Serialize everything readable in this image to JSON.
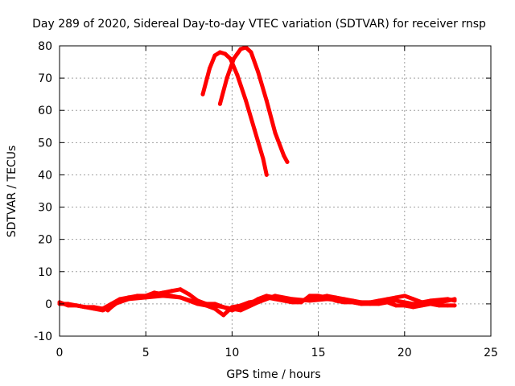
{
  "chart_data": {
    "type": "line",
    "title": "Day 289 of 2020, Sidereal Day-to-day VTEC variation (SDTVAR) for receiver rnsp",
    "xlabel": "GPS time / hours",
    "ylabel": "SDTVAR / TECUs",
    "xlim": [
      0,
      25
    ],
    "ylim": [
      -10,
      80
    ],
    "xticks": [
      "0",
      "5",
      "10",
      "15",
      "20",
      "25"
    ],
    "yticks": [
      "-10",
      "0",
      "10",
      "20",
      "30",
      "40",
      "50",
      "60",
      "70",
      "80"
    ],
    "grid": true,
    "series_color": "#ff0000",
    "series": [
      {
        "points": [
          [
            8.3,
            65
          ],
          [
            8.7,
            73
          ],
          [
            9.0,
            77
          ],
          [
            9.3,
            78
          ],
          [
            9.6,
            77.5
          ],
          [
            9.9,
            76
          ],
          [
            10.3,
            71
          ],
          [
            10.8,
            63
          ],
          [
            11.3,
            54
          ],
          [
            11.8,
            45
          ],
          [
            12.0,
            40
          ]
        ]
      },
      {
        "points": [
          [
            9.3,
            62
          ],
          [
            9.7,
            70
          ],
          [
            10.1,
            76
          ],
          [
            10.5,
            79
          ],
          [
            10.8,
            79.5
          ],
          [
            11.1,
            78
          ],
          [
            11.5,
            72
          ],
          [
            12.0,
            63
          ],
          [
            12.5,
            53
          ],
          [
            13.0,
            46
          ],
          [
            13.2,
            44
          ]
        ]
      },
      {
        "points": [
          [
            0,
            0
          ],
          [
            0.5,
            0
          ],
          [
            1.0,
            -0.5
          ],
          [
            1.5,
            -1
          ],
          [
            2.0,
            -1.5
          ],
          [
            2.5,
            -2
          ],
          [
            3.0,
            -1
          ],
          [
            3.5,
            1
          ],
          [
            4.0,
            2
          ],
          [
            4.5,
            2.5
          ],
          [
            5.0,
            2.5
          ],
          [
            5.5,
            3
          ],
          [
            6.0,
            3.5
          ],
          [
            6.5,
            4
          ],
          [
            7.0,
            4.5
          ],
          [
            7.5,
            3
          ],
          [
            8.0,
            1
          ],
          [
            8.5,
            0
          ],
          [
            9.0,
            0
          ],
          [
            9.5,
            -1
          ],
          [
            10.0,
            -2
          ],
          [
            10.5,
            -1
          ],
          [
            11.0,
            0
          ],
          [
            11.5,
            1.5
          ],
          [
            12.0,
            2.5
          ],
          [
            12.5,
            2
          ],
          [
            13.0,
            1.5
          ],
          [
            13.5,
            1
          ],
          [
            14.0,
            1
          ],
          [
            14.5,
            1.5
          ],
          [
            15.0,
            2
          ],
          [
            15.5,
            2.5
          ],
          [
            16.0,
            2
          ],
          [
            16.5,
            1.5
          ],
          [
            17.0,
            1
          ],
          [
            17.5,
            0.5
          ],
          [
            18.0,
            0.5
          ],
          [
            18.5,
            1
          ],
          [
            19.0,
            1.5
          ],
          [
            19.5,
            2
          ],
          [
            20.0,
            2.5
          ],
          [
            20.5,
            1.5
          ],
          [
            21.0,
            0.5
          ],
          [
            21.5,
            0
          ],
          [
            22.0,
            0.5
          ],
          [
            22.5,
            1
          ],
          [
            22.9,
            1.5
          ]
        ]
      },
      {
        "points": [
          [
            0,
            0.5
          ],
          [
            0.5,
            -0.5
          ],
          [
            1.0,
            -0.5
          ],
          [
            1.5,
            -1
          ],
          [
            2.0,
            -1
          ],
          [
            2.5,
            -1.5
          ],
          [
            3.0,
            0
          ],
          [
            3.5,
            1.5
          ],
          [
            4.0,
            2
          ],
          [
            4.5,
            2
          ],
          [
            5.0,
            2.5
          ],
          [
            5.5,
            3.5
          ],
          [
            6.0,
            3
          ],
          [
            6.5,
            2.5
          ],
          [
            7.0,
            2
          ],
          [
            7.5,
            1
          ],
          [
            8.0,
            0
          ],
          [
            8.5,
            -0.5
          ],
          [
            9.0,
            -1.5
          ],
          [
            9.5,
            -3.5
          ],
          [
            10.0,
            -1
          ],
          [
            10.5,
            -0.5
          ],
          [
            11.0,
            0.5
          ],
          [
            11.5,
            1
          ],
          [
            12.0,
            2
          ],
          [
            12.5,
            1.5
          ],
          [
            13.0,
            1
          ],
          [
            13.5,
            0.5
          ],
          [
            14.0,
            0.5
          ],
          [
            14.5,
            2.5
          ],
          [
            15.0,
            2.5
          ],
          [
            15.5,
            2
          ],
          [
            16.0,
            1
          ],
          [
            16.5,
            0.5
          ],
          [
            17.0,
            0.5
          ],
          [
            17.5,
            0
          ],
          [
            18.0,
            0
          ],
          [
            18.5,
            0
          ],
          [
            19.0,
            0.5
          ],
          [
            19.5,
            -0.5
          ],
          [
            20.0,
            -0.5
          ],
          [
            20.5,
            -1
          ],
          [
            21.0,
            -0.5
          ],
          [
            21.5,
            0
          ],
          [
            22.0,
            -0.5
          ],
          [
            22.5,
            -0.5
          ],
          [
            22.9,
            -0.5
          ]
        ]
      },
      {
        "points": [
          [
            2.8,
            -2
          ],
          [
            3.2,
            0
          ],
          [
            4.0,
            1.5
          ],
          [
            5.0,
            2
          ],
          [
            6.0,
            2.5
          ],
          [
            7.0,
            2
          ],
          [
            7.6,
            1
          ],
          [
            8.5,
            0
          ],
          [
            9.5,
            -1
          ],
          [
            10.5,
            -2
          ],
          [
            11.5,
            0.5
          ],
          [
            12.5,
            2.5
          ],
          [
            13.5,
            1.5
          ],
          [
            14.5,
            1
          ],
          [
            15.5,
            1.5
          ],
          [
            16.5,
            1
          ],
          [
            17.5,
            0
          ],
          [
            18.5,
            0.5
          ],
          [
            19.5,
            1
          ],
          [
            20.5,
            0
          ],
          [
            21.5,
            1
          ],
          [
            22.5,
            1.5
          ],
          [
            22.9,
            1
          ]
        ]
      }
    ]
  }
}
